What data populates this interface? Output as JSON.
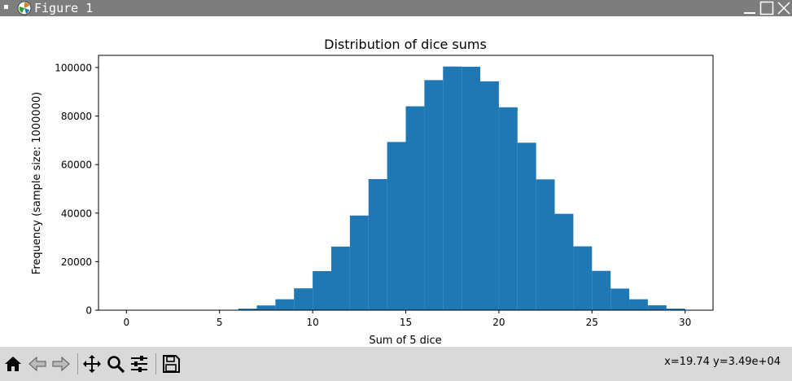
{
  "window": {
    "title": "Figure 1"
  },
  "toolbar": {
    "buttons": [
      {
        "name": "home-icon",
        "label": "Home"
      },
      {
        "name": "back-icon",
        "label": "Back"
      },
      {
        "name": "forward-icon",
        "label": "Forward"
      },
      {
        "name": "pan-icon",
        "label": "Pan"
      },
      {
        "name": "zoom-icon",
        "label": "Zoom"
      },
      {
        "name": "configure-subplots-icon",
        "label": "Configure subplots"
      },
      {
        "name": "save-icon",
        "label": "Save"
      }
    ],
    "coords": "x=19.74 y=3.49e+04"
  },
  "chart_data": {
    "type": "bar",
    "title": "Distribution of dice sums",
    "xlabel": "Sum of 5 dice",
    "ylabel": "Frequency (sample size: 1000000)",
    "bar_color": "#1f77b4",
    "xlim": [
      -1.5,
      31.5
    ],
    "ylim": [
      0,
      105000
    ],
    "xticks": [
      0,
      5,
      10,
      15,
      20,
      25,
      30
    ],
    "yticks": [
      0,
      20000,
      40000,
      60000,
      80000,
      100000
    ],
    "bin_width": 1,
    "x": [
      5,
      6,
      7,
      8,
      9,
      10,
      11,
      12,
      13,
      14,
      15,
      16,
      17,
      18,
      19,
      20,
      21,
      22,
      23,
      24,
      25,
      26,
      27,
      28,
      29,
      30
    ],
    "values": [
      100,
      620,
      1950,
      4500,
      9000,
      16100,
      26200,
      39000,
      54000,
      69300,
      84000,
      94800,
      100400,
      100300,
      94300,
      83600,
      69000,
      53900,
      39700,
      26300,
      16200,
      8900,
      4500,
      2000,
      640,
      130
    ]
  }
}
